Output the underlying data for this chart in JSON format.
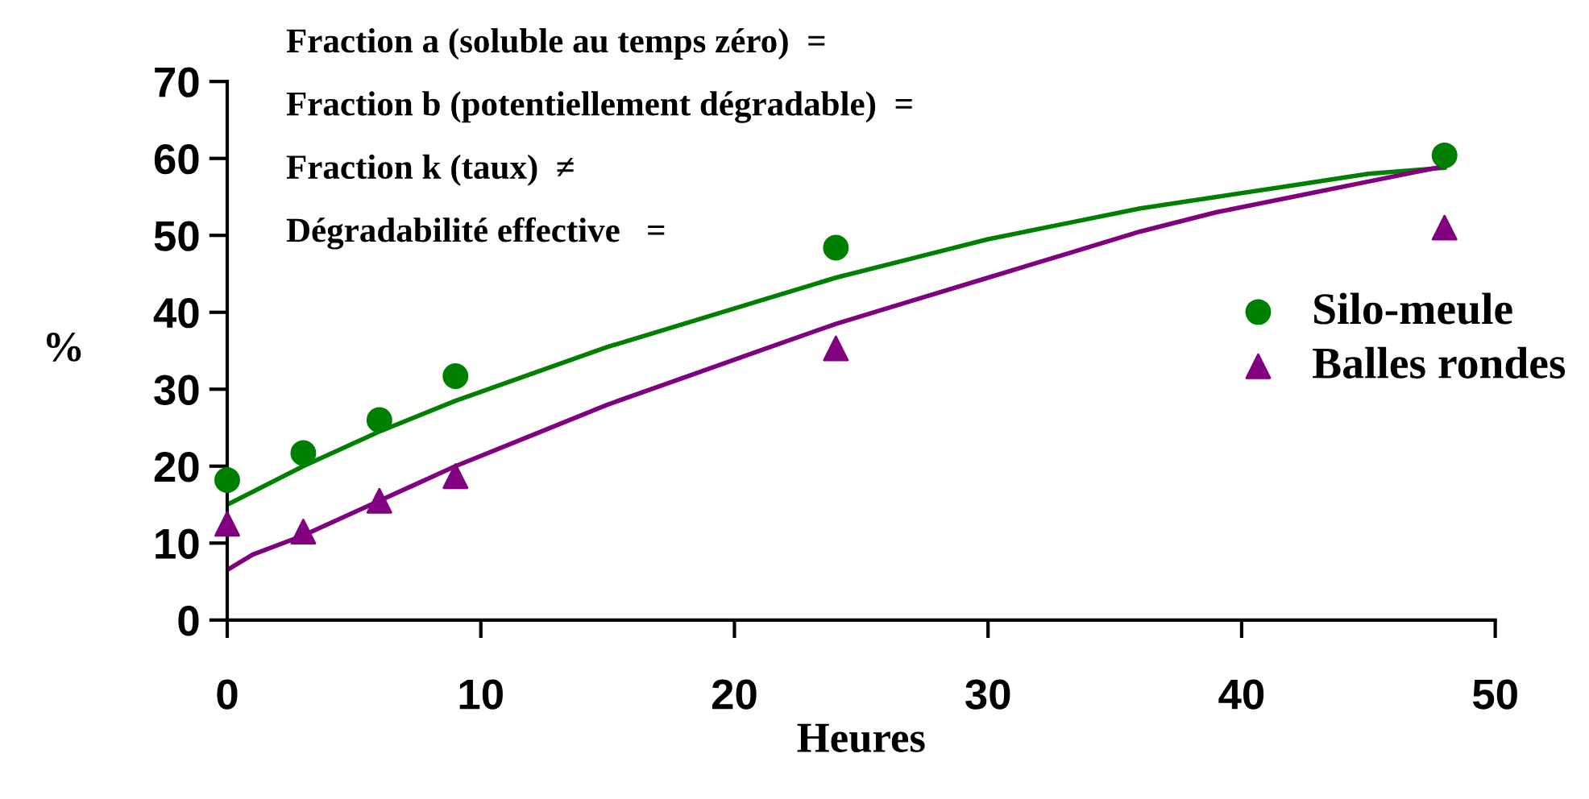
{
  "chart_data": {
    "type": "scatter",
    "xlabel": "Heures",
    "ylabel": "%",
    "xlim": [
      0,
      50
    ],
    "ylim": [
      0,
      70
    ],
    "xticks": [
      0,
      10,
      20,
      30,
      40,
      50
    ],
    "yticks": [
      0,
      10,
      20,
      30,
      40,
      50,
      60,
      70
    ],
    "grid": false,
    "legend": "right",
    "annotations": [
      "Fraction a (soluble au temps zéro)  =",
      "Fraction b (potentiellement dégradable)  =",
      "Fraction k (taux)  ≠",
      "Dégradabilité effective   ="
    ],
    "series": [
      {
        "name": "Silo-meule",
        "marker": "circle",
        "color": "#008000",
        "x": [
          0,
          3,
          6,
          9,
          24,
          48
        ],
        "values": [
          18.2,
          21.7,
          26,
          31.7,
          48.4,
          60.4
        ]
      },
      {
        "name": "Balles rondes",
        "marker": "triangle",
        "color": "#800080",
        "x": [
          0,
          3,
          6,
          9,
          24,
          48
        ],
        "values": [
          12.5,
          11.5,
          15.5,
          18.7,
          35.3,
          51
        ]
      },
      {
        "type": "line",
        "marker": "none",
        "line_style": "solid",
        "color": "#008000",
        "x": [
          0,
          3,
          6,
          9,
          12,
          15,
          18,
          21,
          24,
          27,
          30,
          33,
          36,
          39,
          42,
          45,
          48
        ],
        "values": [
          15,
          20,
          24.5,
          28.5,
          32,
          35.5,
          38.5,
          41.5,
          44.5,
          47,
          49.5,
          51.5,
          53.5,
          55,
          56.5,
          58,
          58.8
        ]
      },
      {
        "type": "line",
        "marker": "none",
        "line_style": "solid",
        "color": "#800080",
        "x": [
          0,
          1,
          3,
          6,
          9,
          12,
          15,
          18,
          21,
          24,
          27,
          30,
          33,
          36,
          39,
          42,
          45,
          48
        ],
        "values": [
          6.5,
          8.5,
          11,
          15.5,
          20,
          24,
          28,
          31.5,
          35,
          38.5,
          41.5,
          44.5,
          47.5,
          50.5,
          53,
          55,
          57,
          59
        ]
      }
    ]
  }
}
